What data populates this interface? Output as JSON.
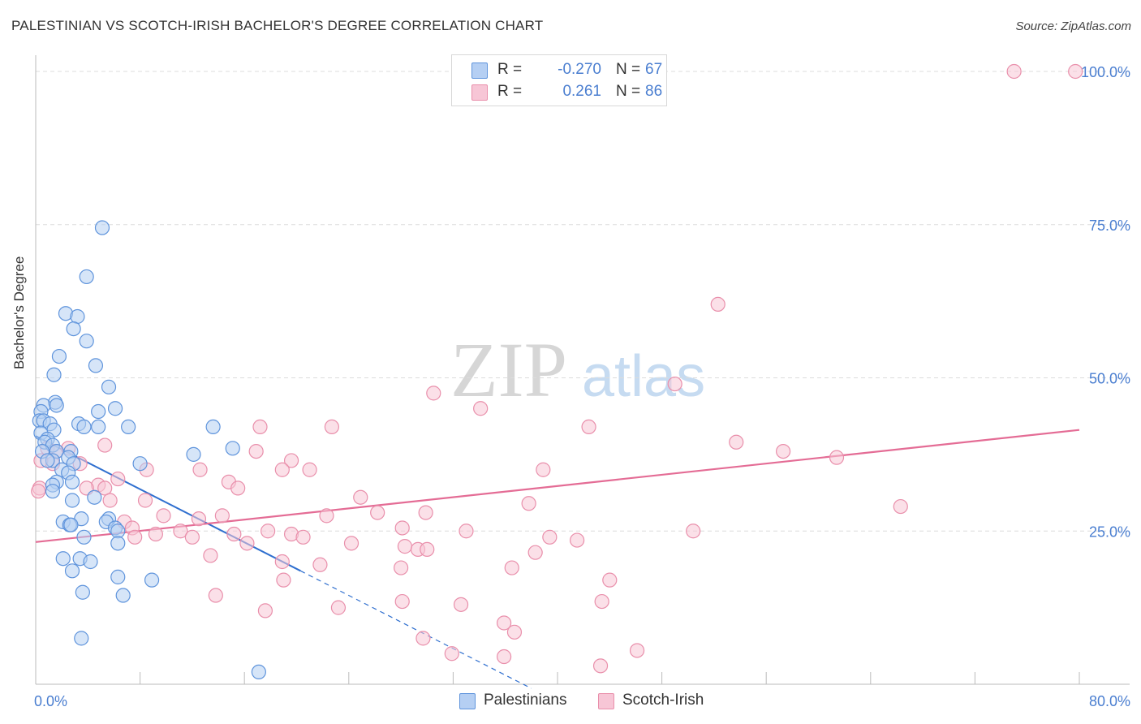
{
  "title": "PALESTINIAN VS SCOTCH-IRISH BACHELOR'S DEGREE CORRELATION CHART",
  "source": "Source: ZipAtlas.com",
  "watermark": {
    "zip": "ZIP",
    "atlas": "atlas"
  },
  "colors": {
    "blue_fill": "#b5cff3",
    "blue_stroke": "#5f94dc",
    "blue_line": "#2f6fcf",
    "pink_fill": "#f7c6d6",
    "pink_stroke": "#e98fab",
    "pink_line": "#e46c95",
    "axis_text": "#4a7ed0",
    "grid": "#dcdcdc"
  },
  "legend": {
    "rows": [
      {
        "name": "Palestinians",
        "r_label": "R =",
        "r_value": "-0.270",
        "n_label": "N =",
        "n_value": "67"
      },
      {
        "name": "Scotch-Irish",
        "r_label": "R =",
        "r_value": "0.261",
        "n_label": "N =",
        "n_value": "86"
      }
    ]
  },
  "chart_data": {
    "type": "scatter",
    "title": "PALESTINIAN VS SCOTCH-IRISH BACHELOR'S DEGREE CORRELATION CHART",
    "xlabel": "",
    "ylabel": "Bachelor's Degree",
    "xlim": [
      0,
      80
    ],
    "ylim": [
      0,
      100
    ],
    "x_tick_labels": [
      "0.0%",
      "80.0%"
    ],
    "y_ticks": [
      25,
      50,
      75,
      100
    ],
    "y_tick_labels": [
      "25.0%",
      "50.0%",
      "75.0%",
      "100.0%"
    ],
    "grid": true,
    "legend_position": "top-center",
    "series": [
      {
        "name": "Palestinians",
        "r": -0.27,
        "n": 67,
        "trend": {
          "x0": 0,
          "y0": 40.5,
          "x1": 20.3,
          "y1": 18.5,
          "dash_to_x": 38
        },
        "points": [
          [
            5.1,
            74.5
          ],
          [
            3.9,
            66.5
          ],
          [
            2.3,
            60.5
          ],
          [
            3.2,
            60
          ],
          [
            2.9,
            58
          ],
          [
            3.9,
            56
          ],
          [
            1.8,
            53.5
          ],
          [
            4.6,
            52
          ],
          [
            1.4,
            50.5
          ],
          [
            5.6,
            48.5
          ],
          [
            1.5,
            46
          ],
          [
            0.6,
            45.5
          ],
          [
            1.6,
            45.5
          ],
          [
            0.4,
            44.5
          ],
          [
            6.1,
            45
          ],
          [
            4.8,
            44.5
          ],
          [
            0.3,
            43
          ],
          [
            0.6,
            43
          ],
          [
            1.1,
            42.5
          ],
          [
            3.3,
            42.5
          ],
          [
            3.7,
            42
          ],
          [
            4.8,
            42
          ],
          [
            7.1,
            42
          ],
          [
            13.6,
            42
          ],
          [
            1.4,
            41.5
          ],
          [
            0.4,
            41
          ],
          [
            0.9,
            40
          ],
          [
            0.7,
            39.5
          ],
          [
            1.3,
            39
          ],
          [
            0.5,
            38
          ],
          [
            1.6,
            38
          ],
          [
            2.7,
            38
          ],
          [
            15.1,
            38.5
          ],
          [
            12.1,
            37.5
          ],
          [
            2.5,
            37
          ],
          [
            1.3,
            36.5
          ],
          [
            2.9,
            36
          ],
          [
            0.9,
            36.5
          ],
          [
            8.0,
            36
          ],
          [
            2.0,
            35
          ],
          [
            2.5,
            34.5
          ],
          [
            1.6,
            33
          ],
          [
            2.8,
            33
          ],
          [
            1.3,
            32.5
          ],
          [
            1.3,
            31.5
          ],
          [
            4.5,
            30.5
          ],
          [
            2.8,
            30
          ],
          [
            3.5,
            27
          ],
          [
            5.6,
            27
          ],
          [
            5.4,
            26.5
          ],
          [
            2.1,
            26.5
          ],
          [
            2.6,
            26
          ],
          [
            2.7,
            26
          ],
          [
            6.1,
            25.5
          ],
          [
            6.3,
            25
          ],
          [
            3.7,
            24
          ],
          [
            6.3,
            23
          ],
          [
            2.1,
            20.5
          ],
          [
            3.4,
            20.5
          ],
          [
            4.2,
            20
          ],
          [
            2.8,
            18.5
          ],
          [
            6.3,
            17.5
          ],
          [
            8.9,
            17
          ],
          [
            3.6,
            15
          ],
          [
            6.7,
            14.5
          ],
          [
            3.5,
            7.5
          ],
          [
            17.1,
            2
          ]
        ]
      },
      {
        "name": "Scotch-Irish",
        "r": 0.261,
        "n": 86,
        "trend": {
          "x0": 0,
          "y0": 23.2,
          "x1": 80,
          "y1": 41.5
        },
        "points": [
          [
            75.0,
            100
          ],
          [
            79.7,
            100
          ],
          [
            52.3,
            62
          ],
          [
            49.0,
            49
          ],
          [
            30.5,
            47.5
          ],
          [
            34.1,
            45
          ],
          [
            42.4,
            42
          ],
          [
            17.2,
            42
          ],
          [
            22.7,
            42
          ],
          [
            53.7,
            39.5
          ],
          [
            57.3,
            38
          ],
          [
            61.4,
            37
          ],
          [
            5.3,
            39
          ],
          [
            16.9,
            38
          ],
          [
            19.6,
            36.5
          ],
          [
            0.9,
            38.5
          ],
          [
            1.6,
            38
          ],
          [
            2.5,
            38.5
          ],
          [
            1.3,
            36
          ],
          [
            3.4,
            36
          ],
          [
            0.4,
            36.5
          ],
          [
            12.6,
            35
          ],
          [
            21.0,
            35
          ],
          [
            14.8,
            33
          ],
          [
            38.9,
            35
          ],
          [
            18.9,
            35
          ],
          [
            8.5,
            35
          ],
          [
            6.3,
            33.5
          ],
          [
            4.8,
            32.5
          ],
          [
            5.3,
            32
          ],
          [
            3.9,
            32
          ],
          [
            15.5,
            32
          ],
          [
            0.3,
            32
          ],
          [
            0.2,
            31.5
          ],
          [
            24.9,
            30.5
          ],
          [
            37.8,
            29.5
          ],
          [
            66.3,
            29
          ],
          [
            5.7,
            30
          ],
          [
            8.4,
            30
          ],
          [
            26.2,
            28
          ],
          [
            29.9,
            28
          ],
          [
            22.3,
            27.5
          ],
          [
            9.8,
            27.5
          ],
          [
            12.5,
            27
          ],
          [
            14.3,
            27.5
          ],
          [
            6.8,
            26.5
          ],
          [
            7.4,
            25.5
          ],
          [
            28.1,
            25.5
          ],
          [
            11.1,
            25
          ],
          [
            9.2,
            24.5
          ],
          [
            15.2,
            24.5
          ],
          [
            17.8,
            25
          ],
          [
            19.6,
            24.5
          ],
          [
            33.0,
            25
          ],
          [
            50.4,
            25
          ],
          [
            12.0,
            24
          ],
          [
            20.5,
            24
          ],
          [
            7.6,
            24
          ],
          [
            39.4,
            24
          ],
          [
            41.5,
            23.5
          ],
          [
            16.2,
            23
          ],
          [
            28.3,
            22.5
          ],
          [
            24.2,
            23
          ],
          [
            29.3,
            22
          ],
          [
            30.0,
            22
          ],
          [
            38.3,
            21.5
          ],
          [
            13.4,
            21
          ],
          [
            18.9,
            20
          ],
          [
            21.8,
            19.5
          ],
          [
            28.0,
            19
          ],
          [
            36.5,
            19
          ],
          [
            44.0,
            17
          ],
          [
            19.0,
            17
          ],
          [
            13.8,
            14.5
          ],
          [
            43.4,
            13.5
          ],
          [
            32.6,
            13
          ],
          [
            28.1,
            13.5
          ],
          [
            17.6,
            12
          ],
          [
            23.2,
            12.5
          ],
          [
            35.9,
            10
          ],
          [
            36.7,
            8.5
          ],
          [
            29.7,
            7.5
          ],
          [
            46.1,
            5.5
          ],
          [
            31.9,
            5
          ],
          [
            35.9,
            4.5
          ],
          [
            43.3,
            3
          ]
        ]
      }
    ]
  }
}
